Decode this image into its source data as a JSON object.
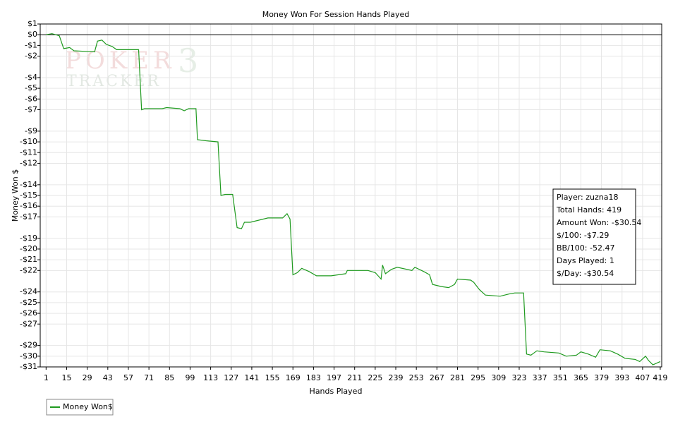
{
  "chart_data": {
    "type": "line",
    "title": "Money Won For Session Hands Played",
    "x_label": "Hands Played",
    "y_label": "Money Won $",
    "x": [
      1,
      5,
      10,
      13,
      17,
      20,
      34,
      36,
      39,
      42,
      46,
      49,
      64,
      66,
      68,
      80,
      83,
      92,
      95,
      98,
      103,
      104,
      110,
      118,
      120,
      123,
      128,
      131,
      134,
      136,
      140,
      152,
      162,
      165,
      167,
      169,
      172,
      175,
      180,
      185,
      195,
      200,
      205,
      206,
      220,
      225,
      229,
      230,
      232,
      236,
      240,
      250,
      252,
      258,
      262,
      264,
      270,
      275,
      279,
      281,
      290,
      292,
      296,
      300,
      310,
      316,
      320,
      326,
      328,
      331,
      335,
      340,
      350,
      355,
      362,
      365,
      370,
      375,
      378,
      385,
      390,
      395,
      402,
      405,
      409,
      411,
      414,
      419
    ],
    "series": [
      {
        "name": "Money Won$",
        "color": "#1f9a1f",
        "values": [
          0,
          0.1,
          -0.1,
          -1.3,
          -1.2,
          -1.5,
          -1.6,
          -0.6,
          -0.5,
          -0.9,
          -1.1,
          -1.4,
          -1.4,
          -7.0,
          -6.9,
          -6.9,
          -6.8,
          -6.9,
          -7.1,
          -6.9,
          -6.9,
          -9.8,
          -9.9,
          -10.0,
          -15.0,
          -14.9,
          -14.9,
          -18.0,
          -18.1,
          -17.5,
          -17.5,
          -17.1,
          -17.1,
          -16.7,
          -17.2,
          -22.4,
          -22.2,
          -21.8,
          -22.1,
          -22.5,
          -22.5,
          -22.4,
          -22.3,
          -22.0,
          -22.0,
          -22.2,
          -22.8,
          -21.5,
          -22.3,
          -21.9,
          -21.7,
          -22.0,
          -21.7,
          -22.1,
          -22.4,
          -23.3,
          -23.5,
          -23.6,
          -23.3,
          -22.8,
          -22.9,
          -23.1,
          -23.8,
          -24.3,
          -24.4,
          -24.2,
          -24.1,
          -24.1,
          -29.8,
          -29.9,
          -29.5,
          -29.6,
          -29.7,
          -30.0,
          -29.9,
          -29.6,
          -29.8,
          -30.1,
          -29.4,
          -29.5,
          -29.8,
          -30.2,
          -30.3,
          -30.5,
          -30.0,
          -30.4,
          -30.8,
          -30.5
        ]
      }
    ],
    "xlim": [
      -3,
      420
    ],
    "ylim": [
      -31,
      1
    ],
    "xticks": [
      1,
      15,
      29,
      43,
      57,
      71,
      85,
      99,
      113,
      127,
      141,
      155,
      169,
      183,
      197,
      211,
      225,
      239,
      253,
      267,
      281,
      295,
      309,
      323,
      337,
      351,
      365,
      379,
      393,
      407,
      419
    ],
    "yticks": [
      {
        "value": 1,
        "label": "$1"
      },
      {
        "value": 0,
        "label": "$0"
      },
      {
        "value": -1,
        "label": "-$1"
      },
      {
        "value": -2,
        "label": "-$2"
      },
      {
        "value": -4,
        "label": "-$4"
      },
      {
        "value": -5,
        "label": "-$5"
      },
      {
        "value": -6,
        "label": "-$6"
      },
      {
        "value": -7,
        "label": "-$7"
      },
      {
        "value": -9,
        "label": "-$9"
      },
      {
        "value": -10,
        "label": "-$10"
      },
      {
        "value": -11,
        "label": "-$11"
      },
      {
        "value": -12,
        "label": "-$12"
      },
      {
        "value": -14,
        "label": "-$14"
      },
      {
        "value": -15,
        "label": "-$15"
      },
      {
        "value": -16,
        "label": "-$16"
      },
      {
        "value": -17,
        "label": "-$17"
      },
      {
        "value": -19,
        "label": "-$19"
      },
      {
        "value": -20,
        "label": "-$20"
      },
      {
        "value": -21,
        "label": "-$21"
      },
      {
        "value": -22,
        "label": "-$22"
      },
      {
        "value": -24,
        "label": "-$24"
      },
      {
        "value": -25,
        "label": "-$25"
      },
      {
        "value": -26,
        "label": "-$26"
      },
      {
        "value": -27,
        "label": "-$27"
      },
      {
        "value": -29,
        "label": "-$29"
      },
      {
        "value": -30,
        "label": "-$30"
      },
      {
        "value": -31,
        "label": "-$31"
      }
    ],
    "grid": true,
    "zero_line": true,
    "annotations": [
      "Player: zuzna18",
      "Total Hands: 419",
      "Amount Won: -$30.54",
      "$/100: -$7.29",
      "BB/100: -52.47",
      "Days Played: 1",
      "$/Day: -$30.54"
    ],
    "watermark": [
      "POKER",
      "TRACKER",
      "3"
    ]
  }
}
